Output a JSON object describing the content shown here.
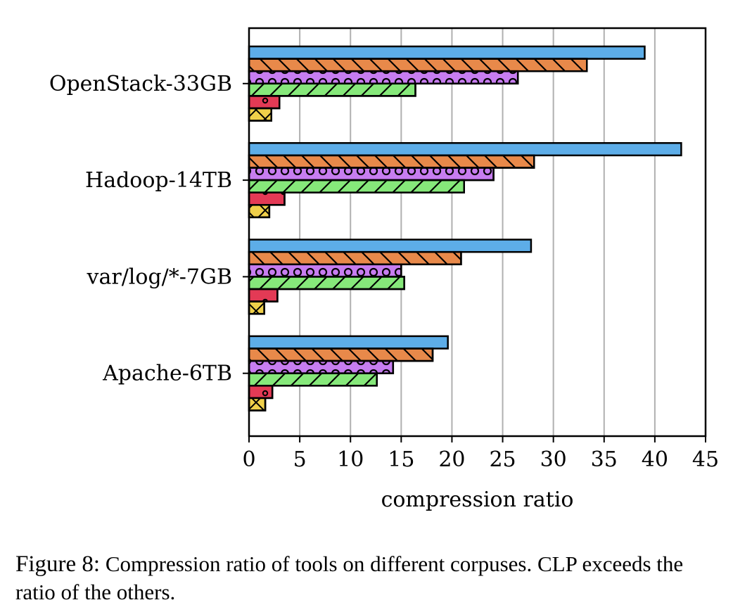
{
  "chart_data": {
    "type": "bar",
    "orientation": "horizontal",
    "categories": [
      "OpenStack-33GB",
      "Hadoop-14TB",
      "var/log/*-7GB",
      "Apache-6TB"
    ],
    "series": [
      {
        "values": [
          39.0,
          42.6,
          27.8,
          19.6
        ],
        "color": "#5dade8",
        "hatch": "none"
      },
      {
        "values": [
          33.3,
          28.1,
          20.9,
          18.1
        ],
        "color": "#e8894a",
        "hatch": "backslash"
      },
      {
        "values": [
          26.5,
          24.1,
          15.0,
          14.2
        ],
        "color": "#c77df0",
        "hatch": "circles"
      },
      {
        "values": [
          16.4,
          21.2,
          15.3,
          12.6
        ],
        "color": "#86e87a",
        "hatch": "slash"
      },
      {
        "values": [
          3.0,
          3.5,
          2.8,
          2.3
        ],
        "color": "#e33a55",
        "hatch": "dots"
      },
      {
        "values": [
          2.2,
          2.0,
          1.5,
          1.6
        ],
        "color": "#f0d04a",
        "hatch": "cross"
      }
    ],
    "xlabel": "compression ratio",
    "ylabel": "",
    "xlim": [
      0,
      45
    ],
    "xticks": [
      0,
      5,
      10,
      15,
      20,
      25,
      30,
      35,
      40,
      45
    ],
    "grid": "vertical"
  },
  "caption": {
    "label": "Figure 8:",
    "text": " Compression ratio of tools on different corpuses. CLP exceeds the ratio of the others."
  }
}
